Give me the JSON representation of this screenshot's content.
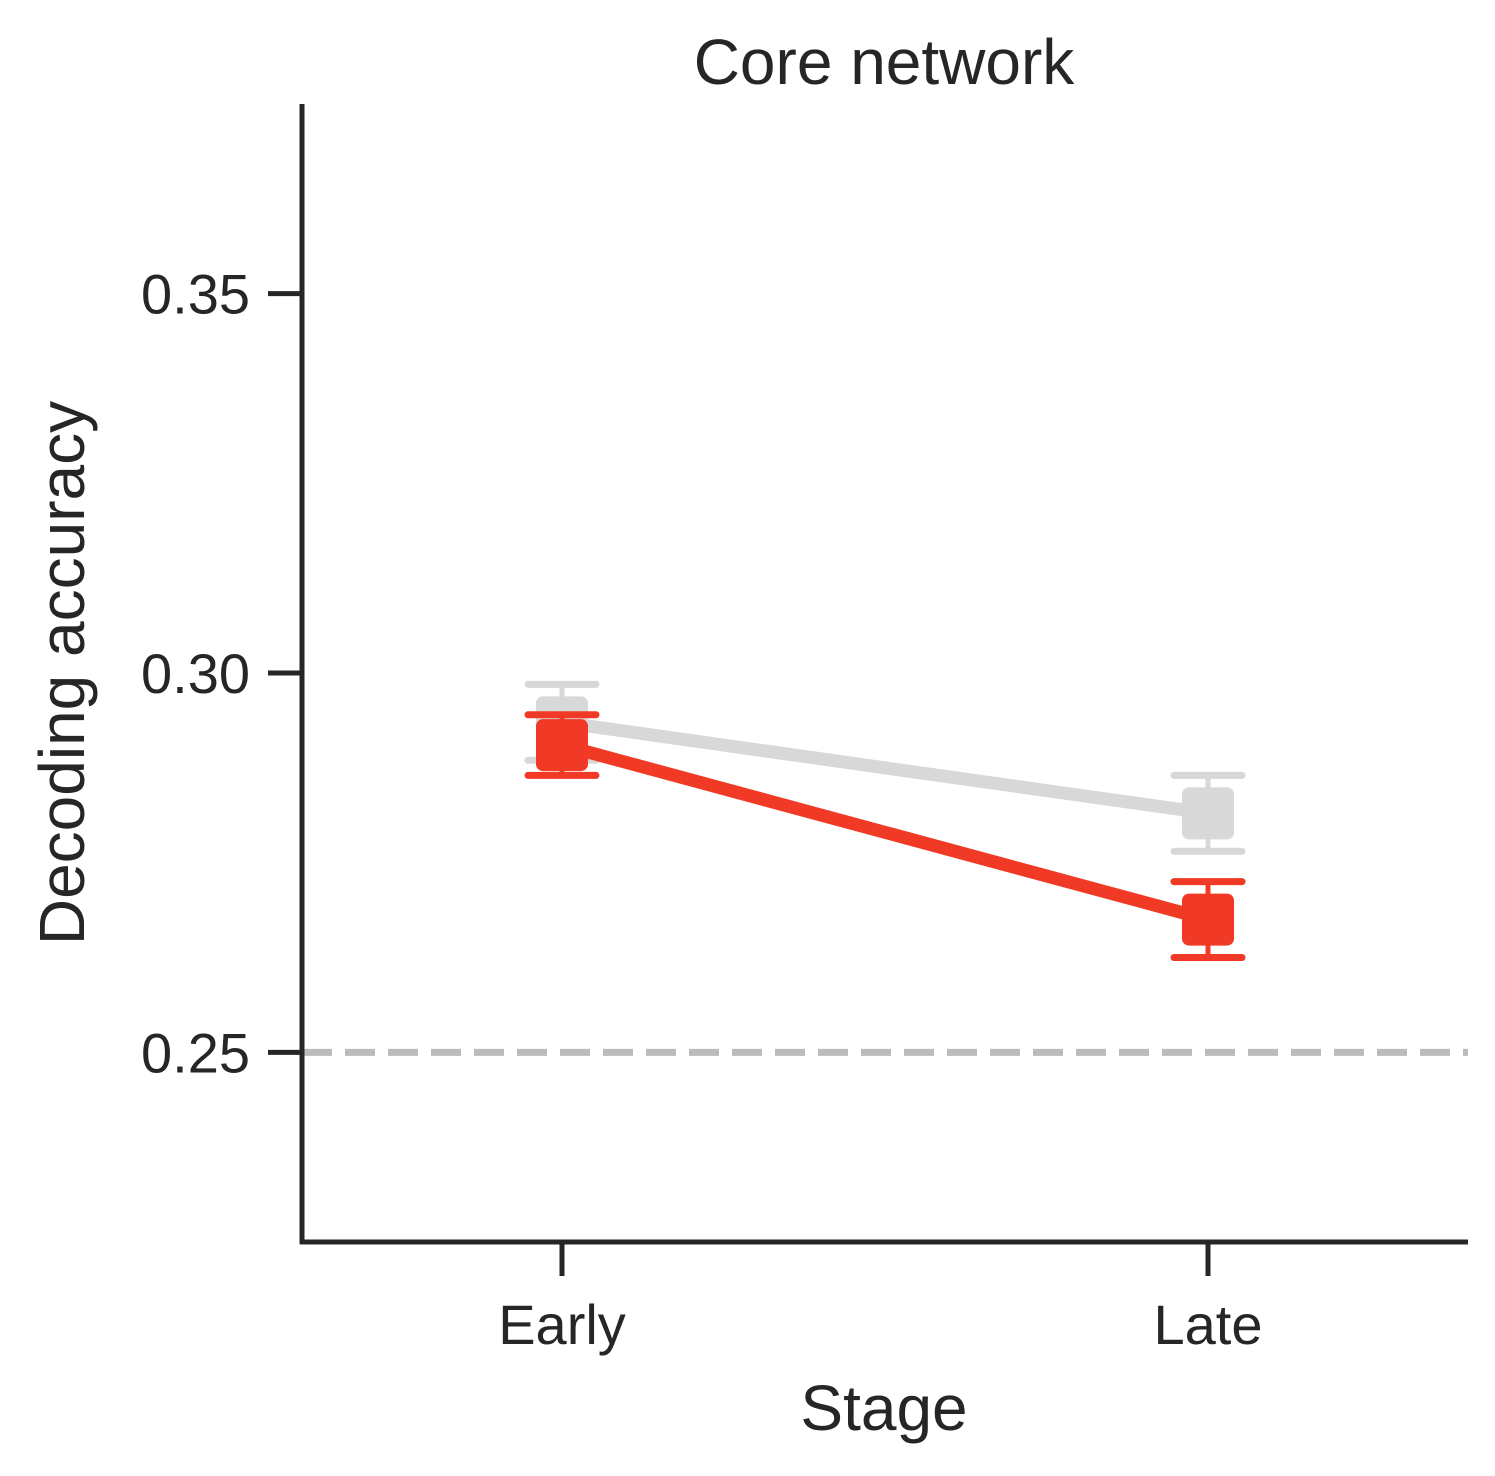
{
  "chart_data": {
    "type": "line",
    "title": "Core network",
    "xlabel": "Stage",
    "ylabel": "Decoding accuracy",
    "categories": [
      "Early",
      "Late"
    ],
    "ylim": [
      0.225,
      0.375
    ],
    "yticks": [
      "0.25",
      "0.30",
      "0.35"
    ],
    "ytick_values": [
      0.25,
      0.3,
      0.35
    ],
    "reference_line": {
      "y": 0.25,
      "style": "dashed",
      "color": "#bbbbbb"
    },
    "grid": false,
    "series": [
      {
        "color": "#d8d8d8",
        "values": [
          0.2935,
          0.2815
        ],
        "err_low": [
          0.2885,
          0.2765
        ],
        "err_high": [
          0.2985,
          0.2865
        ]
      },
      {
        "color": "#f03a25",
        "values": [
          0.2905,
          0.2675
        ],
        "err_low": [
          0.2865,
          0.2625
        ],
        "err_high": [
          0.2945,
          0.2725
        ]
      }
    ]
  }
}
